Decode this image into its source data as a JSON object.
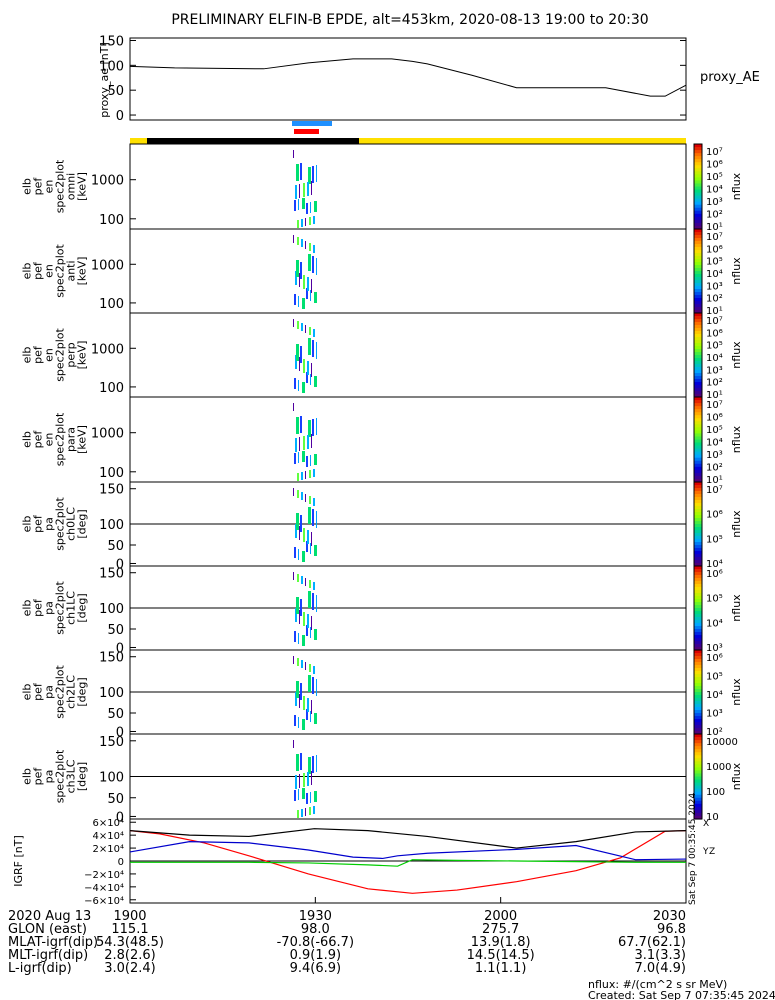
{
  "title": "PRELIMINARY ELFIN-B EPDE, alt=453km, 2020-08-13 19:00 to 20:30",
  "colors": {
    "bar_black": "#000000",
    "bar_yellow": "#ffe000",
    "bar_blue": "#1e90ff",
    "bar_red": "#ff0000",
    "bx": "#ff0000",
    "by": "#00cc00",
    "bz": "#0000cc",
    "bt": "#000000"
  },
  "chart_data": [
    {
      "type": "line",
      "name": "proxy_ae",
      "ylabel": "proxy_ae [nT]",
      "legend": "proxy_AE",
      "ylim": [
        -10,
        155
      ],
      "yticks": [
        "150",
        "100",
        "50",
        "0"
      ],
      "ytick_values": [
        150,
        100,
        50,
        0
      ],
      "x": [
        0,
        15,
        30,
        45,
        60,
        75,
        88,
        95,
        100,
        115,
        130,
        145,
        160,
        175,
        180,
        187
      ],
      "values": [
        98,
        95,
        94,
        93,
        105,
        113,
        113,
        108,
        103,
        80,
        55,
        55,
        55,
        38,
        38,
        60
      ]
    },
    {
      "type": "heatmap",
      "name": "elb pef en spec2plot omni",
      "ylabel": [
        "elb",
        "pef",
        "en",
        "spec2plot",
        "omni",
        "[keV]"
      ],
      "yticks": [
        "1000",
        "100"
      ],
      "colorbar": {
        "label": "nflux",
        "ticks": [
          "10⁷",
          "10⁶",
          "10⁵",
          "10⁴",
          "10³",
          "10²",
          "10¹"
        ]
      }
    },
    {
      "type": "heatmap",
      "name": "elb pef en spec2plot anti",
      "ylabel": [
        "elb",
        "pef",
        "en",
        "spec2plot",
        "anti",
        "[keV]"
      ],
      "yticks": [
        "1000",
        "100"
      ],
      "colorbar": {
        "label": "nflux",
        "ticks": [
          "10⁷",
          "10⁶",
          "10⁵",
          "10⁴",
          "10³",
          "10²",
          "10¹"
        ]
      }
    },
    {
      "type": "heatmap",
      "name": "elb pef en spec2plot perp",
      "ylabel": [
        "elb",
        "pef",
        "en",
        "spec2plot",
        "perp",
        "[keV]"
      ],
      "yticks": [
        "1000",
        "100"
      ],
      "colorbar": {
        "label": "nflux",
        "ticks": [
          "10⁷",
          "10⁶",
          "10⁵",
          "10⁴",
          "10³",
          "10²",
          "10¹"
        ]
      }
    },
    {
      "type": "heatmap",
      "name": "elb pef en spec2plot para",
      "ylabel": [
        "elb",
        "pef",
        "en",
        "spec2plot",
        "para",
        "[keV]"
      ],
      "yticks": [
        "1000",
        "100"
      ],
      "colorbar": {
        "label": "nflux",
        "ticks": [
          "10⁷",
          "10⁶",
          "10⁵",
          "10⁴",
          "10³",
          "10²",
          "10¹"
        ]
      }
    },
    {
      "type": "heatmap",
      "name": "elb pef pa spec2plot ch0LC",
      "ylabel": [
        "elb",
        "pef",
        "pa",
        "spec2plot",
        "ch0LC",
        "[deg]"
      ],
      "yticks": [
        "150",
        "100",
        "50",
        "0"
      ],
      "colorbar": {
        "label": "nflux",
        "ticks": [
          "10⁷",
          "10⁶",
          "10⁵",
          "10⁴"
        ]
      }
    },
    {
      "type": "heatmap",
      "name": "elb pef pa spec2plot ch1LC",
      "ylabel": [
        "elb",
        "pef",
        "pa",
        "spec2plot",
        "ch1LC",
        "[deg]"
      ],
      "yticks": [
        "150",
        "100",
        "50",
        "0"
      ],
      "colorbar": {
        "label": "nflux",
        "ticks": [
          "10⁶",
          "10⁵",
          "10⁴",
          "10³"
        ]
      }
    },
    {
      "type": "heatmap",
      "name": "elb pef pa spec2plot ch2LC",
      "ylabel": [
        "elb",
        "pef",
        "pa",
        "spec2plot",
        "ch2LC",
        "[deg]"
      ],
      "yticks": [
        "150",
        "100",
        "50",
        "0"
      ],
      "colorbar": {
        "label": "nflux",
        "ticks": [
          "10⁶",
          "10⁵",
          "10⁴",
          "10³",
          "10²"
        ]
      }
    },
    {
      "type": "heatmap",
      "name": "elb pef pa spec2plot ch3LC",
      "ylabel": [
        "elb",
        "pef",
        "pa",
        "spec2plot",
        "ch3LC",
        "[deg]"
      ],
      "yticks": [
        "150",
        "100",
        "50",
        "0"
      ],
      "colorbar": {
        "label": "nflux",
        "ticks": [
          "10000",
          "1000",
          "100",
          "10"
        ]
      }
    },
    {
      "type": "line",
      "name": "IGRF",
      "ylabel": "IGRF [nT]",
      "ylim": [
        -65000,
        65000
      ],
      "yticks": [
        "6×10⁴",
        "4×10⁴",
        "2×10⁴",
        "0",
        "−2×10⁴",
        "−4×10⁴",
        "−6×10⁴"
      ],
      "ytick_values": [
        60000,
        40000,
        20000,
        0,
        -20000,
        -40000,
        -60000
      ],
      "side_labels": [
        "X",
        "Y",
        "Z"
      ],
      "series": [
        {
          "name": "X",
          "x": [
            0,
            10,
            25,
            40,
            60,
            80,
            95,
            110,
            130,
            150,
            165,
            180,
            187
          ],
          "values": [
            47000,
            42000,
            28000,
            8000,
            -20000,
            -43000,
            -50000,
            -45000,
            -32000,
            -15000,
            5000,
            46000,
            47000
          ]
        },
        {
          "name": "Y",
          "x": [
            0,
            20,
            40,
            60,
            80,
            90,
            95,
            110,
            130,
            150,
            170,
            187
          ],
          "values": [
            -2000,
            -2000,
            -2000,
            -3000,
            -6000,
            -8000,
            2000,
            1000,
            0,
            -1000,
            -2000,
            -2000
          ]
        },
        {
          "name": "Z",
          "x": [
            0,
            20,
            40,
            60,
            75,
            85,
            90,
            100,
            130,
            150,
            170,
            187
          ],
          "values": [
            14000,
            30000,
            28000,
            17000,
            6000,
            4000,
            8000,
            12000,
            18000,
            24000,
            2000,
            3000
          ]
        },
        {
          "name": "B",
          "x": [
            0,
            20,
            40,
            62,
            80,
            100,
            130,
            150,
            170,
            187
          ],
          "values": [
            47000,
            40000,
            38000,
            50000,
            47000,
            38000,
            20000,
            30000,
            45000,
            47000
          ]
        }
      ]
    }
  ],
  "x_ticks": [
    "1900",
    "1930",
    "2000",
    "2030"
  ],
  "footer": {
    "rows": [
      {
        "label": "2020 Aug 13",
        "vals": [
          "1900",
          "1930",
          "2000",
          "2030"
        ]
      },
      {
        "label": "GLON (east)",
        "vals": [
          "115.1",
          "98.0",
          "275.7",
          "96.8"
        ]
      },
      {
        "label": "MLAT-igrf(dip)",
        "vals": [
          "54.3(48.5)",
          "-70.8(-66.7)",
          "13.9(1.8)",
          "67.7(62.1)"
        ]
      },
      {
        "label": "MLT-igrf(dip)",
        "vals": [
          "2.8(2.6)",
          "0.9(1.9)",
          "14.5(14.5)",
          "3.1(3.3)"
        ]
      },
      {
        "label": "L-igrf(dip)",
        "vals": [
          "3.0(2.4)",
          "9.4(6.9)",
          "1.1(1.1)",
          "7.0(4.9)"
        ]
      }
    ],
    "units_note": "nflux: #/(cm^2 s sr MeV)",
    "created": "Created: Sat Sep  7 07:35:45 2024",
    "side_stamp": "Sat Sep  7 00:35:45 2024"
  }
}
